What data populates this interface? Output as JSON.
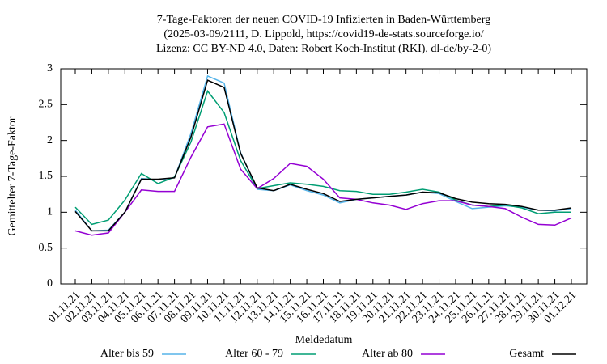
{
  "chart_data": {
    "type": "line",
    "title": [
      "7-Tage-Faktoren der neuen COVID-19 Infizierten in Baden-Württemberg",
      "(2025-03-09/2111, D. Lippold, https://covid19-de-stats.sourceforge.io/",
      "Lizenz: CC BY-ND 4.0, Daten: Robert Koch-Institut (RKI), dl-de/by-2-0)"
    ],
    "xlabel": "Meldedatum",
    "ylabel": "Gemittelter 7-Tage-Faktor",
    "categories": [
      "01.11.21",
      "02.11.21",
      "03.11.21",
      "04.11.21",
      "05.11.21",
      "06.11.21",
      "07.11.21",
      "08.11.21",
      "09.11.21",
      "10.11.21",
      "11.11.21",
      "12.11.21",
      "13.11.21",
      "14.11.21",
      "15.11.21",
      "16.11.21",
      "17.11.21",
      "18.11.21",
      "19.11.21",
      "20.11.21",
      "21.11.21",
      "22.11.21",
      "23.11.21",
      "24.11.21",
      "25.11.21",
      "26.11.21",
      "27.11.21",
      "28.11.21",
      "29.11.21",
      "30.11.21",
      "01.12.21"
    ],
    "series": [
      {
        "name": "Alter bis 59",
        "color": "#56b4e9",
        "values": [
          1.03,
          0.74,
          0.75,
          1.0,
          1.47,
          1.45,
          1.48,
          2.1,
          2.9,
          2.8,
          1.83,
          1.32,
          1.3,
          1.38,
          1.3,
          1.24,
          1.13,
          1.18,
          1.2,
          1.22,
          1.24,
          1.28,
          1.26,
          1.15,
          1.05,
          1.07,
          1.09,
          1.07,
          1.03,
          1.02,
          1.05
        ]
      },
      {
        "name": "Alter 60 - 79",
        "color": "#009e73",
        "values": [
          1.07,
          0.83,
          0.89,
          1.17,
          1.54,
          1.4,
          1.49,
          1.98,
          2.69,
          2.39,
          1.72,
          1.33,
          1.37,
          1.41,
          1.39,
          1.36,
          1.3,
          1.29,
          1.25,
          1.25,
          1.28,
          1.32,
          1.28,
          1.17,
          1.1,
          1.08,
          1.1,
          1.06,
          0.98,
          1.0,
          1.0
        ]
      },
      {
        "name": "Alter ab 80",
        "color": "#9400d3",
        "values": [
          0.74,
          0.68,
          0.71,
          1.0,
          1.31,
          1.29,
          1.29,
          1.77,
          2.19,
          2.23,
          1.6,
          1.33,
          1.47,
          1.68,
          1.64,
          1.46,
          1.2,
          1.18,
          1.13,
          1.1,
          1.04,
          1.12,
          1.16,
          1.16,
          1.1,
          1.08,
          1.05,
          0.93,
          0.83,
          0.82,
          0.92
        ]
      },
      {
        "name": "Gesamt",
        "color": "#000000",
        "values": [
          1.01,
          0.74,
          0.74,
          1.0,
          1.46,
          1.46,
          1.48,
          2.05,
          2.84,
          2.74,
          1.82,
          1.34,
          1.3,
          1.39,
          1.32,
          1.26,
          1.15,
          1.18,
          1.2,
          1.22,
          1.24,
          1.28,
          1.27,
          1.19,
          1.14,
          1.12,
          1.11,
          1.08,
          1.03,
          1.03,
          1.06
        ]
      }
    ],
    "ylim": [
      0,
      3
    ],
    "yticks": [
      0,
      0.5,
      1,
      1.5,
      2,
      2.5,
      3
    ],
    "grid": false
  }
}
